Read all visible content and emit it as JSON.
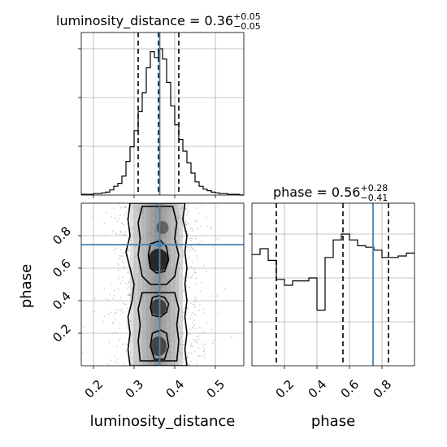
{
  "chart_data": [
    {
      "type": "histogram",
      "panel": "marginal-luminosity_distance",
      "title": {
        "name": "luminosity_distance",
        "median": "0.36",
        "plus": "+0.05",
        "minus": "−0.05"
      },
      "xlim": [
        0.17,
        0.57
      ],
      "ylim": [
        0,
        1.0
      ],
      "bin_edges": [
        0.17,
        0.18,
        0.19,
        0.2,
        0.21,
        0.22,
        0.23,
        0.24,
        0.25,
        0.26,
        0.27,
        0.28,
        0.29,
        0.3,
        0.31,
        0.32,
        0.33,
        0.34,
        0.35,
        0.36,
        0.37,
        0.38,
        0.39,
        0.4,
        0.41,
        0.42,
        0.43,
        0.44,
        0.45,
        0.46,
        0.47,
        0.48,
        0.49,
        0.5,
        0.51,
        0.52,
        0.53,
        0.54,
        0.55,
        0.56,
        0.57
      ],
      "heights": [
        0.005,
        0.005,
        0.005,
        0.01,
        0.01,
        0.015,
        0.02,
        0.035,
        0.06,
        0.08,
        0.13,
        0.23,
        0.33,
        0.44,
        0.57,
        0.7,
        0.87,
        0.98,
        0.94,
        1.0,
        0.93,
        0.77,
        0.61,
        0.48,
        0.38,
        0.3,
        0.22,
        0.15,
        0.09,
        0.06,
        0.04,
        0.03,
        0.02,
        0.015,
        0.01,
        0.01,
        0.005,
        0.005,
        0.005,
        0.0
      ],
      "quantiles": [
        0.31,
        0.36,
        0.41
      ],
      "truth": 0.363,
      "grid": true
    },
    {
      "type": "histogram",
      "panel": "marginal-phase",
      "title": {
        "name": "phase",
        "median": "0.56",
        "plus": "+0.28",
        "minus": "−0.41"
      },
      "xlim": [
        0.0,
        1.0
      ],
      "ylim": [
        0,
        1.0
      ],
      "bin_edges": [
        0.0,
        0.05,
        0.1,
        0.15,
        0.2,
        0.25,
        0.3,
        0.35,
        0.4,
        0.45,
        0.5,
        0.55,
        0.6,
        0.65,
        0.7,
        0.75,
        0.8,
        0.85,
        0.9,
        0.95,
        1.0
      ],
      "heights": [
        0.76,
        0.8,
        0.72,
        0.59,
        0.55,
        0.58,
        0.58,
        0.6,
        0.38,
        0.74,
        0.86,
        0.9,
        0.86,
        0.82,
        0.81,
        0.79,
        0.74,
        0.74,
        0.75,
        0.77
      ],
      "quantiles": [
        0.15,
        0.56,
        0.84
      ],
      "truth": 0.745,
      "grid": true
    },
    {
      "type": "heatmap",
      "panel": "joint-luminosity_distance-phase",
      "xlabel": "luminosity_distance",
      "ylabel": "phase",
      "xlim": [
        0.17,
        0.57
      ],
      "ylim": [
        0.0,
        1.0
      ],
      "truth": {
        "x": 0.363,
        "y": 0.745
      },
      "grid": true
    }
  ],
  "axes": {
    "x_ticks_dist": [
      "0.2",
      "0.3",
      "0.4",
      "0.5"
    ],
    "x_ticks_dist_values": [
      0.2,
      0.3,
      0.4,
      0.5
    ],
    "y_ticks_phase": [
      "0.2",
      "0.4",
      "0.6",
      "0.8"
    ],
    "y_ticks_phase_values": [
      0.2,
      0.4,
      0.6,
      0.8
    ],
    "x_ticks_phase": [
      "0.2",
      "0.4",
      "0.6",
      "0.8"
    ],
    "x_ticks_phase_values": [
      0.2,
      0.4,
      0.6,
      0.8
    ],
    "xlabel_left": "luminosity_distance",
    "xlabel_right": "phase",
    "ylabel_left": "phase"
  },
  "colors": {
    "truth": "#4682b4",
    "hist": "#000000",
    "grid": "#b0b0b0",
    "density_dark": "#222222",
    "density_light": "#e6e6e6",
    "points": "#9a9a9a"
  }
}
